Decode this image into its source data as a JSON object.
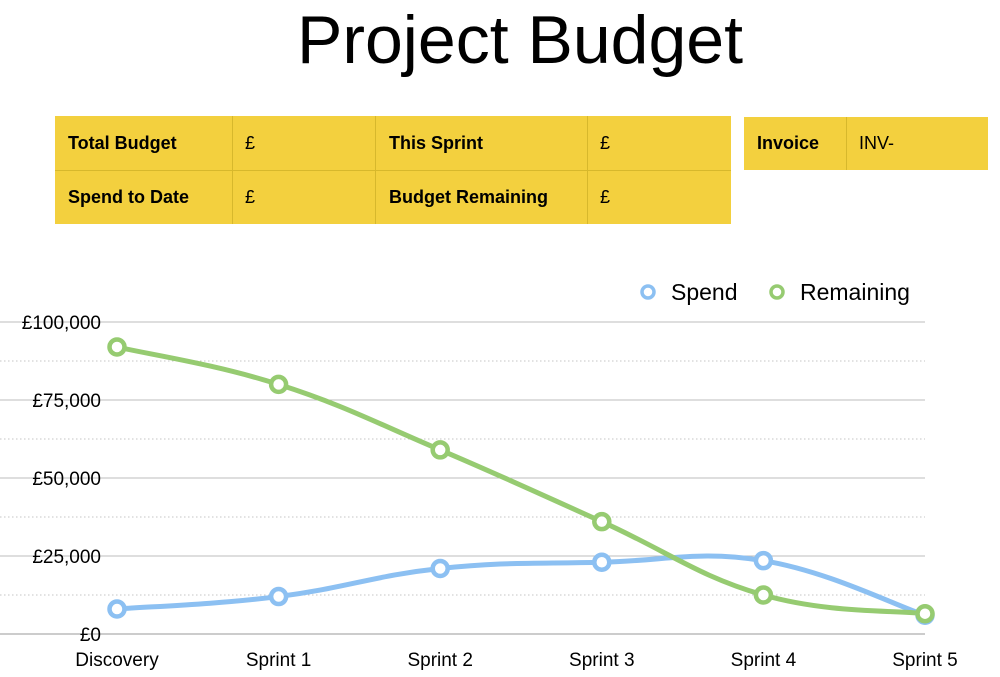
{
  "title": "Project Budget",
  "summary": {
    "rows": [
      [
        {
          "label": "Total Budget",
          "value": "£"
        },
        {
          "label": "This Sprint",
          "value": "£"
        }
      ],
      [
        {
          "label": "Spend to Date",
          "value": "£"
        },
        {
          "label": "Budget Remaining",
          "value": "£"
        }
      ]
    ]
  },
  "invoice": {
    "label": "Invoice",
    "value": "INV-"
  },
  "colors": {
    "summary_fill": "#f3d03e",
    "spend": "#8cc0f2",
    "remaining": "#96cb71"
  },
  "chart_data": {
    "type": "line",
    "categories": [
      "Discovery",
      "Sprint 1",
      "Sprint 2",
      "Sprint 3",
      "Sprint 4",
      "Sprint 5"
    ],
    "series": [
      {
        "name": "Spend",
        "values": [
          8000,
          12000,
          21000,
          23000,
          23500,
          6000
        ]
      },
      {
        "name": "Remaining",
        "values": [
          92000,
          80000,
          59000,
          36000,
          12500,
          6500
        ]
      }
    ],
    "ylim": [
      0,
      100000
    ],
    "yticks": [
      0,
      25000,
      50000,
      75000,
      100000
    ],
    "ytick_labels": [
      "£0",
      "£25,000",
      "£50,000",
      "£75,000",
      "£100,000"
    ],
    "minor_gridlines": [
      12500,
      37500,
      62500,
      87500
    ],
    "legend_position": "top-right",
    "grid": true,
    "smooth": true
  }
}
